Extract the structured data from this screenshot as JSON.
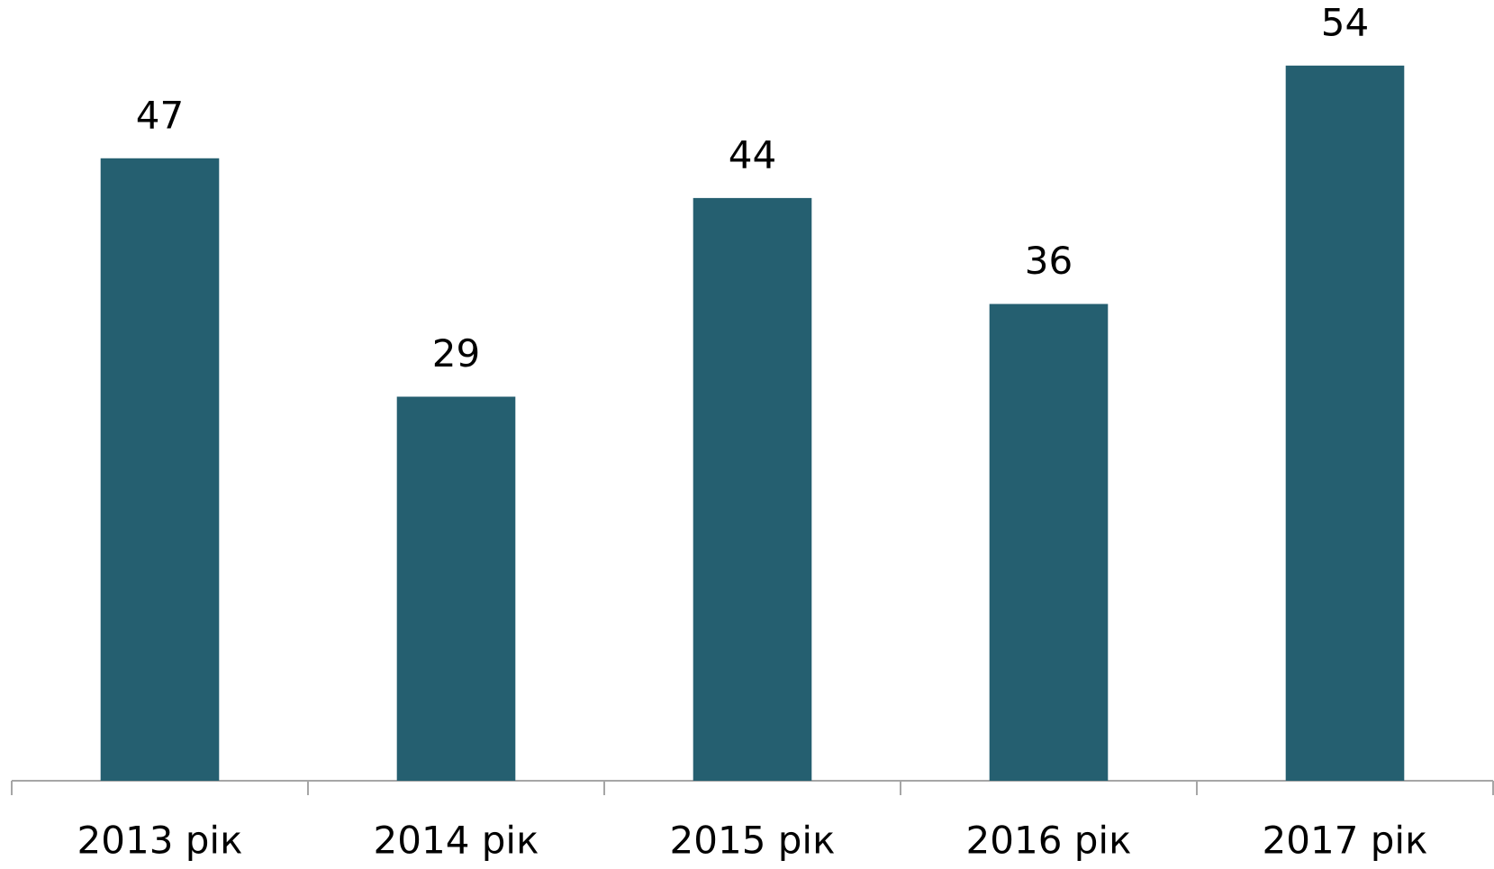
{
  "chart_data": {
    "type": "bar",
    "categories": [
      "2013 рік",
      "2014 рік",
      "2015 рік",
      "2016 рік",
      "2017 рік"
    ],
    "values": [
      47,
      29,
      44,
      36,
      54
    ],
    "color": "#255f70",
    "ylim": [
      0,
      58
    ],
    "grid": false
  }
}
